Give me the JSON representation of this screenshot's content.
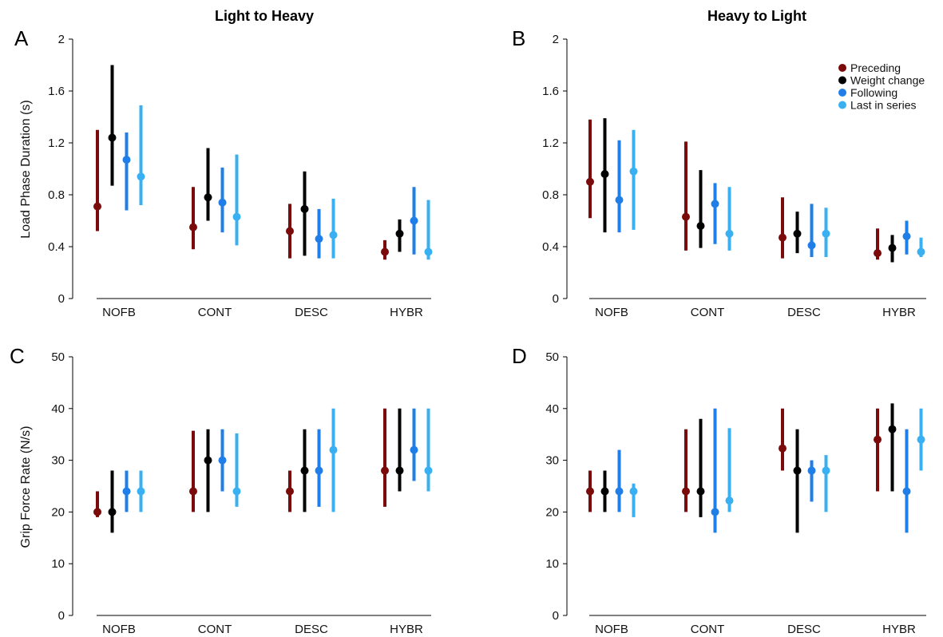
{
  "figure": {
    "titles": [
      "Light to Heavy",
      "Heavy to Light"
    ],
    "ylabels": {
      "load": "Load Phase Duration (s)",
      "grip": "Grip Force Rate (N/s)"
    }
  },
  "legend": {
    "placement": "top-right of panel B",
    "entries": [
      {
        "name": "Preceding",
        "color": "#7b0a0a"
      },
      {
        "name": "Weight change",
        "color": "#000000"
      },
      {
        "name": "Following",
        "color": "#1f7ee8"
      },
      {
        "name": "Last in series",
        "color": "#38b0f2"
      }
    ]
  },
  "chart_data": [
    {
      "panel": "A",
      "type": "scatter",
      "title": "Light to Heavy",
      "ylabel": "Load Phase Duration (s)",
      "ylim": [
        0,
        2
      ],
      "yticks": [
        "0",
        "0.4",
        "0.8",
        "1.2",
        "1.6",
        "2"
      ],
      "categories": [
        "NOFB",
        "CONT",
        "DESC",
        "HYBR"
      ],
      "series": [
        {
          "name": "Preceding",
          "values": [
            0.71,
            0.55,
            0.52,
            0.36
          ],
          "low": [
            0.52,
            0.38,
            0.31,
            0.3
          ],
          "high": [
            1.3,
            0.86,
            0.73,
            0.45
          ]
        },
        {
          "name": "Weight change",
          "values": [
            1.24,
            0.78,
            0.69,
            0.5
          ],
          "low": [
            0.87,
            0.6,
            0.33,
            0.36
          ],
          "high": [
            1.8,
            1.16,
            0.98,
            0.61
          ]
        },
        {
          "name": "Following",
          "values": [
            1.07,
            0.74,
            0.46,
            0.6
          ],
          "low": [
            0.68,
            0.51,
            0.31,
            0.34
          ],
          "high": [
            1.28,
            1.01,
            0.69,
            0.86
          ]
        },
        {
          "name": "Last in series",
          "values": [
            0.94,
            0.63,
            0.49,
            0.36
          ],
          "low": [
            0.72,
            0.41,
            0.31,
            0.3
          ],
          "high": [
            1.49,
            1.11,
            0.77,
            0.76
          ]
        }
      ]
    },
    {
      "panel": "B",
      "type": "scatter",
      "title": "Heavy to Light",
      "ylabel": "",
      "ylim": [
        0,
        2
      ],
      "yticks": [
        "0",
        "0.4",
        "0.8",
        "1.2",
        "1.6",
        "2"
      ],
      "categories": [
        "NOFB",
        "CONT",
        "DESC",
        "HYBR"
      ],
      "series": [
        {
          "name": "Preceding",
          "values": [
            0.9,
            0.63,
            0.47,
            0.35
          ],
          "low": [
            0.62,
            0.37,
            0.31,
            0.3
          ],
          "high": [
            1.38,
            1.21,
            0.78,
            0.54
          ]
        },
        {
          "name": "Weight change",
          "values": [
            0.96,
            0.56,
            0.5,
            0.39
          ],
          "low": [
            0.51,
            0.39,
            0.35,
            0.28
          ],
          "high": [
            1.39,
            0.99,
            0.67,
            0.49
          ]
        },
        {
          "name": "Following",
          "values": [
            0.76,
            0.73,
            0.41,
            0.48
          ],
          "low": [
            0.51,
            0.42,
            0.32,
            0.34
          ],
          "high": [
            1.22,
            0.89,
            0.73,
            0.6
          ]
        },
        {
          "name": "Last in series",
          "values": [
            0.98,
            0.5,
            0.5,
            0.36
          ],
          "low": [
            0.53,
            0.37,
            0.32,
            0.32
          ],
          "high": [
            1.3,
            0.86,
            0.7,
            0.47
          ]
        }
      ]
    },
    {
      "panel": "C",
      "type": "scatter",
      "title": "",
      "ylabel": "Grip Force Rate (N/s)",
      "ylim": [
        0,
        50
      ],
      "yticks": [
        "0",
        "10",
        "20",
        "30",
        "40",
        "50"
      ],
      "categories": [
        "NOFB",
        "CONT",
        "DESC",
        "HYBR"
      ],
      "series": [
        {
          "name": "Preceding",
          "values": [
            20,
            24,
            24,
            28
          ],
          "low": [
            19,
            20,
            20,
            21
          ],
          "high": [
            24,
            35.7,
            28,
            40
          ]
        },
        {
          "name": "Weight change",
          "values": [
            20,
            30,
            28,
            28
          ],
          "low": [
            16,
            20,
            20,
            24
          ],
          "high": [
            28,
            36,
            36,
            40
          ]
        },
        {
          "name": "Following",
          "values": [
            24,
            30,
            28,
            32
          ],
          "low": [
            20,
            24,
            21,
            26
          ],
          "high": [
            28,
            36,
            36,
            40
          ]
        },
        {
          "name": "Last in series",
          "values": [
            24,
            24,
            32,
            28
          ],
          "low": [
            20,
            21,
            20,
            24
          ],
          "high": [
            28,
            35.2,
            40,
            40
          ]
        }
      ]
    },
    {
      "panel": "D",
      "type": "scatter",
      "title": "",
      "ylabel": "",
      "ylim": [
        0,
        50
      ],
      "yticks": [
        "0",
        "10",
        "20",
        "30",
        "40",
        "50"
      ],
      "categories": [
        "NOFB",
        "CONT",
        "DESC",
        "HYBR"
      ],
      "series": [
        {
          "name": "Preceding",
          "values": [
            24,
            24,
            32.3,
            34
          ],
          "low": [
            20,
            20,
            28,
            24
          ],
          "high": [
            28,
            36,
            40,
            40
          ]
        },
        {
          "name": "Weight change",
          "values": [
            24,
            24,
            28,
            36
          ],
          "low": [
            20,
            19,
            16,
            24
          ],
          "high": [
            28,
            38,
            36,
            41
          ]
        },
        {
          "name": "Following",
          "values": [
            24,
            20,
            28,
            24
          ],
          "low": [
            20,
            16,
            22,
            16
          ],
          "high": [
            32,
            40,
            30,
            36
          ]
        },
        {
          "name": "Last in series",
          "values": [
            24,
            22.2,
            28,
            34
          ],
          "low": [
            19,
            20,
            20,
            28
          ],
          "high": [
            25.5,
            36.2,
            31,
            40
          ]
        }
      ]
    }
  ]
}
